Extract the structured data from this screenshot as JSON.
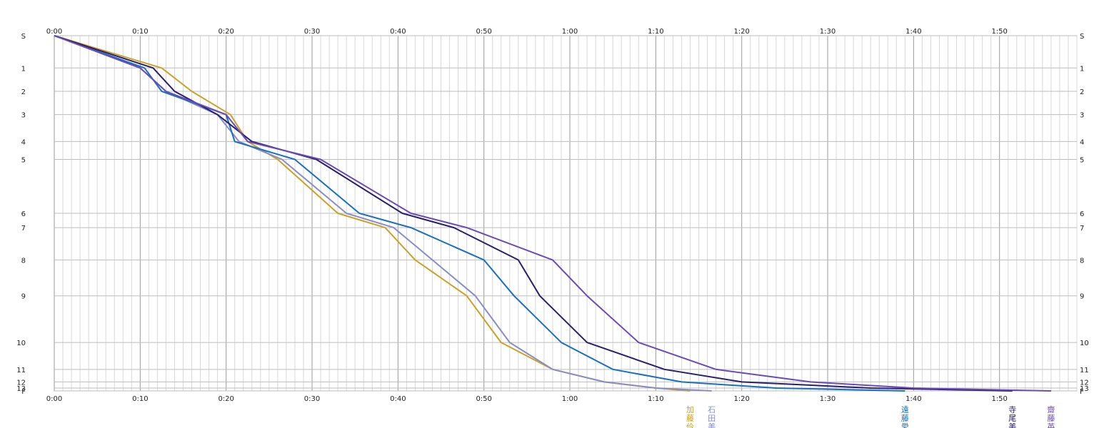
{
  "chart_data": {
    "type": "line",
    "title": "",
    "xlabel": "",
    "ylabel": "",
    "x_unit": "minutes",
    "xlim": [
      0,
      119
    ],
    "x_ticks": [
      {
        "v": 0,
        "label": "0:00"
      },
      {
        "v": 10,
        "label": "0:10"
      },
      {
        "v": 20,
        "label": "0:20"
      },
      {
        "v": 30,
        "label": "0:30"
      },
      {
        "v": 40,
        "label": "0:40"
      },
      {
        "v": 50,
        "label": "0:50"
      },
      {
        "v": 60,
        "label": "1:00"
      },
      {
        "v": 70,
        "label": "1:10"
      },
      {
        "v": 80,
        "label": "1:20"
      },
      {
        "v": 90,
        "label": "1:30"
      },
      {
        "v": 100,
        "label": "1:40"
      },
      {
        "v": 110,
        "label": "1:50"
      }
    ],
    "grid": true,
    "stations": [
      {
        "label": "S",
        "d": 0
      },
      {
        "label": "1",
        "d": 0.9
      },
      {
        "label": "2",
        "d": 1.55
      },
      {
        "label": "3",
        "d": 2.2
      },
      {
        "label": "4",
        "d": 2.95
      },
      {
        "label": "5",
        "d": 3.45
      },
      {
        "label": "6",
        "d": 4.95
      },
      {
        "label": "7",
        "d": 5.35
      },
      {
        "label": "8",
        "d": 6.25
      },
      {
        "label": "9",
        "d": 7.25
      },
      {
        "label": "10",
        "d": 8.55
      },
      {
        "label": "11",
        "d": 9.3
      },
      {
        "label": "12",
        "d": 9.65
      },
      {
        "label": "13",
        "d": 9.82
      },
      {
        "label": "F",
        "d": 9.9
      }
    ],
    "series": [
      {
        "name": "加藤伶",
        "color": "#c9a227",
        "times": [
          0,
          12.5,
          16,
          20.5,
          22.5,
          26,
          33,
          38.5,
          42,
          48,
          52,
          58,
          64,
          70,
          74
        ]
      },
      {
        "name": "石田美",
        "color": "#8a8cc8",
        "times": [
          0,
          10,
          13,
          19,
          21.5,
          26.5,
          34,
          39.5,
          44,
          49,
          53,
          58,
          64,
          70,
          76.5
        ]
      },
      {
        "name": "遠藤愛",
        "color": "#1a6fc0",
        "times": [
          0,
          10.5,
          12.5,
          20,
          21,
          28,
          35.5,
          41.5,
          50,
          53.5,
          59,
          65,
          73,
          84,
          99
        ]
      },
      {
        "name": "寺尾美",
        "color": "#2a1f6b",
        "times": [
          0,
          11.5,
          14,
          19,
          23,
          30.5,
          40.5,
          46.5,
          54,
          56.5,
          62,
          71,
          80,
          95,
          111.5
        ]
      },
      {
        "name": "齋藤英",
        "color": "#6a4bb8",
        "times": [
          0,
          10,
          13,
          20,
          22.5,
          31,
          41.5,
          48,
          58,
          62,
          68,
          77,
          88,
          100,
          116
        ]
      }
    ]
  }
}
